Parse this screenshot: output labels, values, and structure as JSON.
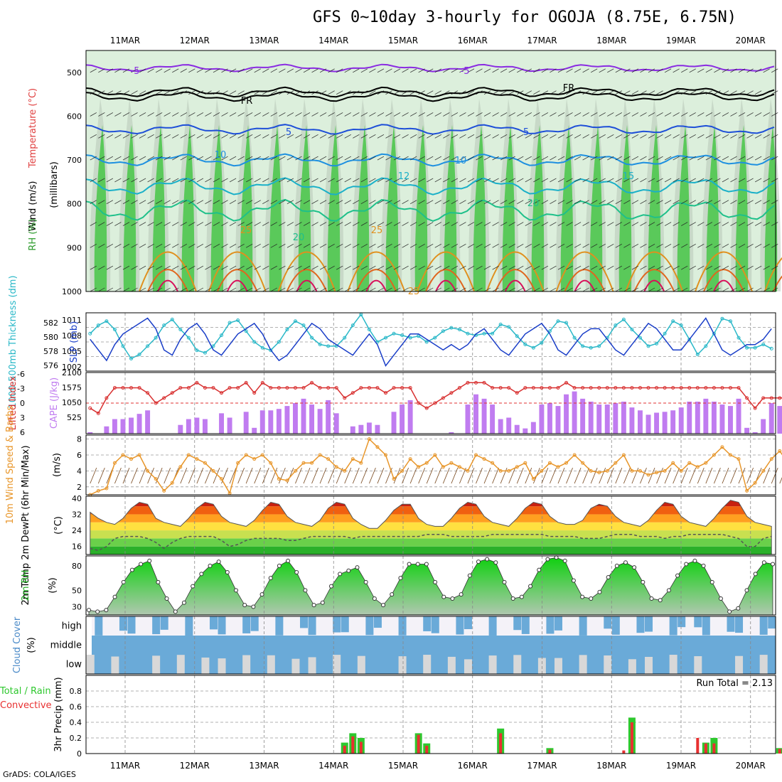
{
  "title": "GFS 0~10day 3-hourly for OGOJA (8.75E, 6.75N)",
  "footer": "GrADS: COLA/IGES",
  "dates": [
    "11MAR",
    "12MAR",
    "13MAR",
    "14MAR",
    "15MAR",
    "16MAR",
    "17MAR",
    "18MAR",
    "19MAR",
    "20MAR"
  ],
  "colors": {
    "rh": "#3fc43f",
    "rh_light": "#dcefdc",
    "rh_gray": "#b8c7b8",
    "temp_purple": "#8a2be2",
    "temp_blue": "#1e4fd8",
    "temp_lblue": "#1e90e0",
    "temp_cyan": "#1ab0c8",
    "temp_teal": "#1ec08a",
    "temp_orange": "#e0901e",
    "temp_red": "#d8105a",
    "thickness": "#2ab8c8",
    "slp": "#1a3ec8",
    "li": "#d83030",
    "cape": "#c07cf0",
    "wind10": "#e8962a",
    "barb": "#7a4a20",
    "rh2m": "#1ecc1e",
    "cloud": "#6aaad8",
    "cloud_low": "#d8d8d8",
    "precip_total": "#2ec82e",
    "precip_conv": "#e83030"
  },
  "panels": {
    "upper": {
      "y_label_wind": "Wind (m/s)",
      "y_label_temp": "Temperature (°C)",
      "y_label_rh": "RH (%)",
      "y_axis_title": "(millibars)",
      "ticks": [
        "500",
        "600",
        "700",
        "800",
        "900",
        "1000"
      ],
      "contour_labels": [
        "-5",
        "-5",
        "FR",
        "FR",
        "5",
        "5",
        "10",
        "10",
        "12",
        "15",
        "20",
        "20",
        "25",
        "25",
        "25"
      ]
    },
    "thick_slp": {
      "y_label_left": "1000-500mb Thickness (dm)",
      "y_label_right": "SLP (mb)",
      "left_ticks": [
        "582",
        "580",
        "578",
        "576"
      ],
      "right_ticks": [
        "1011",
        "1008",
        "1005",
        "1002"
      ]
    },
    "li_cape": {
      "y_label_left": "Lifted Index",
      "y_label_right": "CAPE (J/kg)",
      "left_ticks": [
        "-6",
        "-3",
        "0",
        "3",
        "6"
      ],
      "right_ticks": [
        "2100",
        "1575",
        "1050",
        "525"
      ]
    },
    "wind10": {
      "y_label": "10m Wind Speed & Barbs",
      "unit": "(m/s)",
      "ticks": [
        "8",
        "6",
        "4",
        "2"
      ]
    },
    "temp2m": {
      "y_label": "2m Temp 2m DewPt (6hr Min/Max)",
      "unit": "(°C)",
      "ticks": [
        "40",
        "32",
        "24",
        "16"
      ]
    },
    "rh2m": {
      "y_label": "2m RH",
      "unit": "(%)",
      "ticks": [
        "80",
        "50",
        "30"
      ]
    },
    "cloud": {
      "y_label": "Cloud Cover",
      "unit": "(%)",
      "levels": [
        "high",
        "middle",
        "low"
      ]
    },
    "precip": {
      "y_label_left": "Total / Rain",
      "y_label_left2": "Convective",
      "y_label": "3hr Precip (mm)",
      "ticks": [
        "0.8",
        "0.6",
        "0.4",
        "0.2",
        "0"
      ],
      "run_total": "Run Total = 2.13"
    }
  },
  "chart_data": [
    {
      "type": "line",
      "title": "1000-500mb Thickness (dm) / SLP (mb)",
      "x_unit": "3-hourly steps from 10MAR 12Z",
      "series": [
        {
          "name": "Thickness",
          "values": [
            580.5,
            581.5,
            582,
            581,
            579,
            577.5,
            578,
            579,
            580,
            581.5,
            582.2,
            581,
            580,
            578.5,
            578.2,
            579,
            580.3,
            581.8,
            582.1,
            580.8,
            579.5,
            578.8,
            578.5,
            579.5,
            581,
            582,
            581.5,
            580,
            579.2,
            579,
            579,
            580,
            581.5,
            582.8,
            581,
            579.5,
            580,
            580.5,
            580.3,
            580,
            580.2,
            579.5,
            580,
            580.8,
            581.2,
            581,
            580.5,
            580.3,
            580.5,
            580.5,
            581.6,
            581.3,
            580.2,
            579.2,
            578.8,
            579.4,
            580.8,
            582,
            581.8,
            580,
            579,
            578.8,
            579,
            580,
            581.5,
            582.2,
            581,
            580,
            579,
            579.3,
            580.5,
            582,
            581.5,
            579.8,
            578,
            579,
            580.5,
            582.3,
            582,
            580,
            578.8,
            578.8,
            579.2,
            578.7
          ]
        },
        {
          "name": "SLP",
          "values": [
            1007,
            1005,
            1003,
            1006,
            1008,
            1009,
            1010,
            1011,
            1009,
            1005,
            1004,
            1007,
            1009,
            1010,
            1008,
            1005,
            1004,
            1006,
            1008,
            1009,
            1010,
            1008,
            1005,
            1003,
            1004,
            1006,
            1008,
            1010,
            1009,
            1007,
            1006,
            1005,
            1004,
            1006,
            1008,
            1006,
            1002,
            1004,
            1006,
            1008,
            1008,
            1007,
            1006,
            1005,
            1006,
            1005,
            1006,
            1008,
            1009,
            1007,
            1005,
            1004,
            1006,
            1008,
            1009,
            1010,
            1008,
            1005,
            1004,
            1006,
            1008,
            1009,
            1009,
            1007,
            1005,
            1004,
            1006,
            1008,
            1010,
            1009,
            1007,
            1005,
            1005,
            1007,
            1009,
            1011,
            1008,
            1005,
            1004,
            1005,
            1006,
            1006,
            1007,
            1009
          ]
        }
      ],
      "ylim_left": [
        576,
        583
      ],
      "ylim_right": [
        1001,
        1012
      ]
    },
    {
      "type": "bar",
      "title": "Lifted Index / CAPE (J/kg)",
      "series": [
        {
          "name": "CAPE",
          "values": [
            50,
            0,
            250,
            500,
            500,
            550,
            680,
            800,
            0,
            0,
            0,
            300,
            500,
            550,
            500,
            0,
            700,
            550,
            0,
            750,
            200,
            800,
            800,
            850,
            950,
            1050,
            1200,
            1000,
            850,
            1150,
            700,
            0,
            250,
            300,
            380,
            300,
            0,
            750,
            1000,
            1150,
            0,
            0,
            0,
            0,
            50,
            0,
            1000,
            1350,
            1200,
            1000,
            500,
            550,
            300,
            180,
            400,
            1000,
            1050,
            950,
            1350,
            1450,
            1200,
            1100,
            1000,
            1000,
            1050,
            1100,
            900,
            800,
            650,
            720,
            750,
            800,
            900,
            1100,
            1100,
            1200,
            1100,
            1000,
            950,
            1200,
            200,
            50,
            500,
            1050,
            950,
            900
          ]
        },
        {
          "name": "Lifted Index",
          "values": [
            1,
            2,
            -1,
            -3,
            -3,
            -3,
            -3,
            -2,
            0,
            -1,
            -2,
            -3,
            -3,
            -4,
            -3,
            -3,
            -2,
            -3,
            -3,
            -4,
            -2,
            -4,
            -3,
            -3,
            -3,
            -3,
            -3,
            -4,
            -3,
            -3,
            -3,
            -1,
            -2,
            -3,
            -3,
            -3,
            -2,
            -3,
            -3,
            -3,
            0,
            1,
            0,
            -1,
            -2,
            -3,
            -4,
            -4,
            -4,
            -3,
            -3,
            -3,
            -2,
            -3,
            -3,
            -3,
            -3,
            -3,
            -4,
            -3,
            -3,
            -3,
            -3,
            -3,
            -3,
            -3,
            -3,
            -3,
            -3,
            -3,
            -3,
            -3,
            -3,
            -3,
            -3,
            -3,
            -3,
            -3,
            -3,
            -3,
            -1,
            1,
            -1,
            -1,
            -1,
            -1
          ]
        }
      ],
      "ylim_left": [
        6,
        -6
      ],
      "ylim_right": [
        0,
        2100
      ]
    },
    {
      "type": "line",
      "title": "10m Wind Speed & Barbs (m/s)",
      "series": [
        {
          "name": "10m Wind Speed",
          "values": [
            1,
            1.5,
            1.8,
            5,
            6,
            5.5,
            6,
            4,
            3,
            1.5,
            2.5,
            4.5,
            6,
            5.5,
            5,
            4,
            3,
            1.2,
            5,
            6,
            5.5,
            6,
            5,
            3,
            2.8,
            4,
            5,
            5,
            6,
            5.5,
            4.5,
            4,
            5.5,
            5,
            8,
            7,
            6,
            3,
            4,
            5.5,
            4.5,
            5,
            6,
            4.5,
            5,
            4.5,
            4,
            6,
            5.5,
            5,
            4,
            4,
            4.5,
            5,
            3,
            4,
            5,
            4.5,
            5,
            6,
            5,
            4,
            3.8,
            4,
            5,
            6,
            4,
            4,
            3.5,
            3.8,
            4,
            5,
            4,
            5,
            4.5,
            5,
            6,
            7,
            6,
            5.5,
            1.5,
            2.5,
            4,
            5.5,
            6.5,
            5,
            3,
            3.5
          ]
        }
      ],
      "ylim": [
        1,
        8.5
      ]
    },
    {
      "type": "area",
      "title": "2m Temp / 2m DewPt (°C)",
      "series": [
        {
          "name": "2m Temp",
          "values": [
            33,
            30,
            28,
            27,
            30,
            35,
            38,
            37,
            30,
            28,
            27,
            26,
            30,
            35,
            38,
            37,
            31,
            28,
            27,
            26,
            29,
            34,
            38,
            37,
            31,
            28,
            27,
            26,
            29,
            35,
            38,
            37,
            30,
            27,
            25,
            25,
            29,
            34,
            37,
            37,
            30,
            27,
            26,
            26,
            30,
            35,
            38,
            37,
            31,
            28,
            27,
            26,
            30,
            35,
            38,
            37,
            31,
            28,
            27,
            27,
            29,
            35,
            37,
            36,
            31,
            28,
            27,
            26,
            29,
            34,
            38,
            37,
            31,
            28,
            27,
            26,
            30,
            35,
            39,
            38,
            31,
            28,
            27,
            26
          ]
        },
        {
          "name": "2m DewPt",
          "values": [
            15,
            14,
            16,
            20,
            21,
            21,
            21,
            20,
            18,
            15,
            18,
            20,
            21,
            21,
            21,
            21,
            19,
            16,
            17,
            19,
            20,
            20,
            20,
            20,
            19,
            19,
            20,
            21,
            21,
            21,
            21,
            21,
            20,
            21,
            21,
            21,
            21,
            21,
            21,
            21,
            21,
            22,
            22,
            22,
            21,
            21,
            21,
            21,
            21,
            22,
            22,
            22,
            22,
            22,
            22,
            22,
            21,
            21,
            21,
            21,
            20,
            20,
            20,
            21,
            22,
            22,
            22,
            21,
            21,
            21,
            20,
            21,
            21,
            22,
            22,
            22,
            22,
            22,
            21,
            20,
            16,
            16,
            20,
            21
          ]
        }
      ],
      "ylim": [
        12,
        41
      ]
    },
    {
      "type": "area",
      "title": "2m RH (%)",
      "series": [
        {
          "name": "2m RH",
          "values": [
            26,
            24,
            26,
            42,
            60,
            75,
            82,
            86,
            60,
            40,
            24,
            35,
            55,
            70,
            80,
            85,
            72,
            50,
            32,
            30,
            45,
            65,
            80,
            86,
            72,
            50,
            32,
            35,
            55,
            70,
            74,
            78,
            60,
            40,
            32,
            45,
            65,
            82,
            82,
            82,
            60,
            42,
            40,
            45,
            68,
            85,
            88,
            84,
            60,
            40,
            42,
            55,
            75,
            88,
            90,
            86,
            62,
            42,
            40,
            48,
            66,
            80,
            84,
            78,
            60,
            40,
            38,
            50,
            68,
            82,
            86,
            80,
            60,
            40,
            24,
            28,
            50,
            70,
            84,
            82
          ]
        }
      ],
      "ylim": [
        20,
        92
      ]
    },
    {
      "type": "bar",
      "title": "3hr Precip (mm)",
      "series": [
        {
          "name": "Total / Rain",
          "values": [
            0,
            0,
            0,
            0,
            0,
            0,
            0,
            0,
            0,
            0,
            0,
            0,
            0,
            0,
            0,
            0,
            0,
            0,
            0,
            0,
            0,
            0,
            0,
            0,
            0,
            0,
            0,
            0,
            0,
            0,
            0,
            0.14,
            0.26,
            0.2,
            0,
            0,
            0,
            0,
            0,
            0,
            0.26,
            0.13,
            0,
            0,
            0,
            0,
            0,
            0,
            0,
            0,
            0.32,
            0,
            0,
            0,
            0,
            0,
            0.07,
            0,
            0,
            0,
            0,
            0,
            0,
            0,
            0,
            0,
            0.46,
            0,
            0,
            0,
            0,
            0,
            0,
            0,
            0,
            0.14,
            0.2,
            0,
            0,
            0,
            0,
            0,
            0,
            0,
            0.07
          ]
        },
        {
          "name": "Convective",
          "values": [
            0,
            0,
            0,
            0,
            0,
            0,
            0,
            0,
            0,
            0,
            0,
            0,
            0,
            0,
            0,
            0,
            0,
            0,
            0,
            0,
            0,
            0,
            0,
            0,
            0,
            0,
            0,
            0,
            0,
            0,
            0,
            0.1,
            0.22,
            0.15,
            0,
            0,
            0,
            0,
            0,
            0,
            0.24,
            0.1,
            0,
            0,
            0,
            0,
            0,
            0,
            0,
            0,
            0.26,
            0,
            0,
            0,
            0,
            0,
            0.05,
            0,
            0,
            0,
            0,
            0,
            0,
            0,
            0,
            0.04,
            0.4,
            0,
            0,
            0,
            0,
            0,
            0,
            0,
            0.2,
            0.13,
            0.13,
            0,
            0,
            0,
            0,
            0,
            0,
            0,
            0.06
          ]
        }
      ],
      "ylim": [
        0,
        1.0
      ]
    }
  ]
}
